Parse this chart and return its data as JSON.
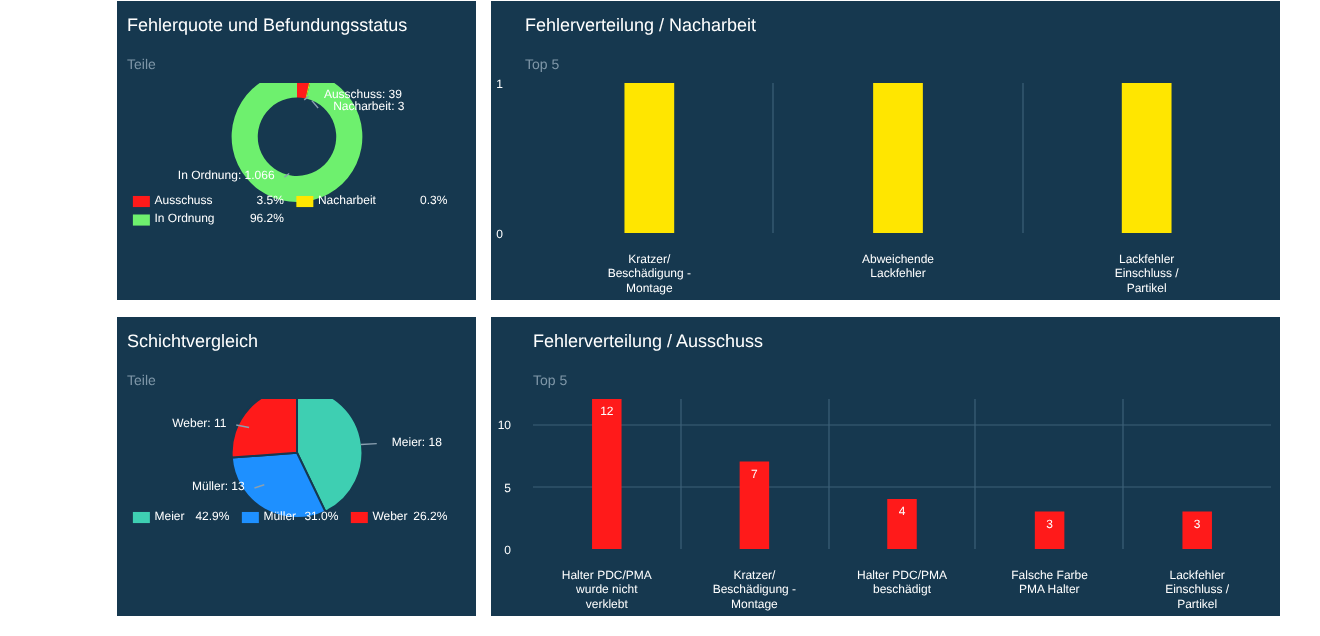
{
  "chart_data": [
    {
      "type": "donut",
      "title": "Fehlerquote und Befundungsstatus",
      "subtitle": "Teile",
      "categories": [
        "Ausschuss",
        "Nacharbeit",
        "In Ordnung"
      ],
      "values": [
        3.5,
        0.3,
        96.2
      ],
      "colors": [
        "#ff1a1a",
        "#ffe600",
        "#6ef06e"
      ],
      "value_labels": [
        "3.5%",
        "0.3%",
        "96.2%"
      ],
      "annotations": [
        "Ausschuss: 39",
        "Nacharbeit: 3",
        "In Ordnung: 1.066"
      ],
      "legend": "bottom"
    },
    {
      "type": "bar",
      "title": "Fehlerverteilung / Nacharbeit",
      "subtitle": "Top 5",
      "categories": [
        "Kratzer/ Beschädigung - Montage",
        "Abweichende Lackfehler",
        "Lackfehler Einschluss / Partikel"
      ],
      "values": [
        1,
        1,
        1
      ],
      "color": "#ffe600",
      "ylim": [
        0,
        1
      ],
      "yticks": [
        0,
        1
      ],
      "grid": true
    },
    {
      "type": "pie",
      "title": "Schichtvergleich",
      "subtitle": "Teile",
      "categories": [
        "Meier",
        "Müller",
        "Weber"
      ],
      "values": [
        42.9,
        31.0,
        26.2
      ],
      "colors": [
        "#3ecfb2",
        "#1e90ff",
        "#ff1a1a"
      ],
      "value_labels": [
        "42.9%",
        "31.0%",
        "26.2%"
      ],
      "annotations": [
        "Meier: 18",
        "Müller: 13",
        "Weber: 11"
      ],
      "legend": "bottom"
    },
    {
      "type": "bar",
      "title": "Fehlerverteilung / Ausschuss",
      "subtitle": "Top 5",
      "categories": [
        "Halter PDC/PMA wurde nicht verklebt",
        "Kratzer/ Beschädigung - Montage",
        "Halter PDC/PMA beschädigt",
        "Falsche Farbe PMA Halter",
        "Lackfehler Einschluss / Partikel"
      ],
      "values": [
        12,
        7,
        4,
        3,
        3
      ],
      "color": "#ff1a1a",
      "ylim": [
        0,
        12
      ],
      "yticks": [
        0,
        5,
        10
      ],
      "grid": true,
      "data_labels": true
    }
  ]
}
